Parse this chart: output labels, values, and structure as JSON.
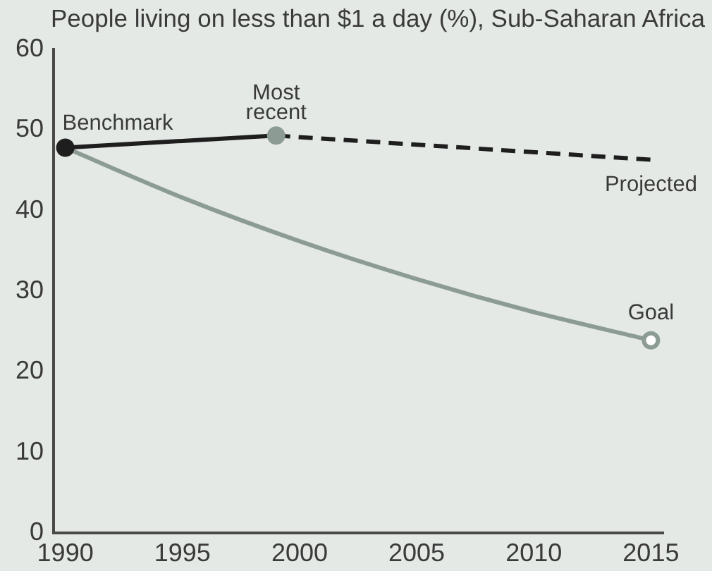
{
  "chart_data": {
    "type": "line",
    "title": "People living on less than $1 a day (%), Sub-Saharan Africa",
    "xlim": [
      1989.5,
      2015.5
    ],
    "xticks": [
      1990,
      1995,
      2000,
      2005,
      2010,
      2015
    ],
    "ylim": [
      0,
      60
    ],
    "yticks": [
      0,
      10,
      20,
      30,
      40,
      50,
      60
    ],
    "series": [
      {
        "color": "#8c9c94",
        "x": [
          1990,
          1995,
          2000,
          2005,
          2010,
          2015
        ],
        "values": [
          47.8,
          41.6,
          36.2,
          31.5,
          27.4,
          23.9
        ],
        "marker": "none"
      },
      {
        "color": "#1e1e1e",
        "x": [
          1990,
          1999
        ],
        "values": [
          47.8,
          49.3
        ],
        "marker": "none"
      },
      {
        "name": "Projected",
        "color": "#1e1e1e",
        "x": [
          1999,
          2015
        ],
        "values": [
          49.3,
          46.3
        ],
        "marker": "none",
        "line_style": "dashed"
      },
      {
        "type": "scatter",
        "name": "Benchmark",
        "color": "#1e1e1e",
        "x": [
          1990
        ],
        "values": [
          47.8
        ],
        "marker": "circle"
      },
      {
        "type": "scatter",
        "color": "#8c9c94",
        "x": [
          1999
        ],
        "values": [
          49.3
        ],
        "marker": "circle"
      },
      {
        "type": "scatter",
        "name": "Goal",
        "color": "#8c9c94",
        "x": [
          2015
        ],
        "values": [
          23.9
        ],
        "marker": "circle"
      }
    ],
    "annotations": [
      {
        "text": "Most recent",
        "x": 1999,
        "y": 49.3
      }
    ]
  }
}
